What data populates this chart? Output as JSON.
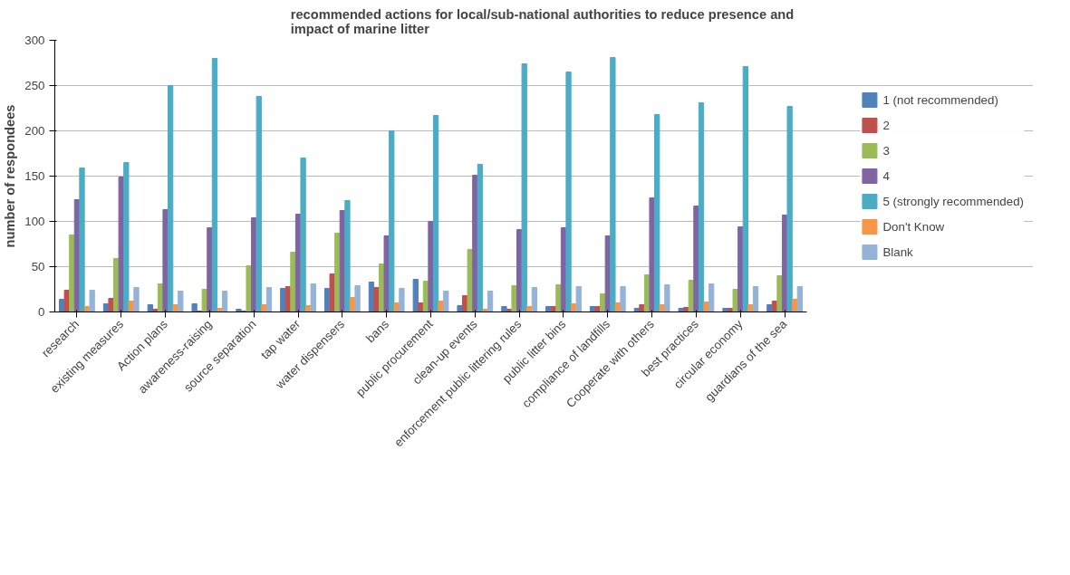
{
  "chart_data": {
    "type": "bar",
    "title": "recommended actions for local/sub-national  authorities to reduce presence and impact of marine litter",
    "ylabel": "number of respondees",
    "categories": [
      "research",
      "existing measures",
      "Action plans",
      "awareness-raising",
      "source separation",
      "tap water",
      "water dispensers",
      "bans",
      "public procurement",
      "clean-up events",
      "enforcement public littering rules",
      "public litter bins",
      "compliance of landfills",
      "Cooperate with others",
      "best practices",
      "circular economy",
      "guardians of the sea"
    ],
    "series": [
      {
        "name": "1 (not recommended)",
        "color": "#4f81bd",
        "values": [
          14,
          9,
          8,
          9,
          3,
          26,
          26,
          33,
          36,
          7,
          6,
          6,
          6,
          4,
          4,
          4,
          8
        ]
      },
      {
        "name": "2",
        "color": "#c0504d",
        "values": [
          24,
          15,
          3,
          1,
          1,
          28,
          42,
          27,
          10,
          18,
          3,
          6,
          6,
          8,
          5,
          4,
          12
        ]
      },
      {
        "name": "3",
        "color": "#9bbb59",
        "values": [
          85,
          59,
          31,
          25,
          51,
          66,
          87,
          53,
          34,
          69,
          29,
          30,
          20,
          41,
          35,
          25,
          40
        ]
      },
      {
        "name": "4",
        "color": "#8064a2",
        "values": [
          124,
          149,
          113,
          93,
          104,
          108,
          112,
          84,
          100,
          151,
          91,
          93,
          84,
          126,
          117,
          94,
          107
        ]
      },
      {
        "name": "5 (strongly recommended)",
        "color": "#4bacc6",
        "values": [
          159,
          165,
          250,
          280,
          238,
          170,
          123,
          200,
          217,
          163,
          274,
          265,
          281,
          218,
          231,
          271,
          227
        ]
      },
      {
        "name": "Don't Know",
        "color": "#f79646",
        "values": [
          6,
          12,
          8,
          4,
          8,
          7,
          16,
          10,
          12,
          3,
          6,
          9,
          10,
          8,
          11,
          8,
          14
        ]
      },
      {
        "name": "Blank",
        "color": "#95b3d7",
        "values": [
          24,
          27,
          23,
          23,
          27,
          31,
          29,
          26,
          23,
          23,
          27,
          28,
          28,
          30,
          31,
          28,
          28
        ]
      }
    ],
    "ylim": [
      0,
      300
    ],
    "yticks": [
      0,
      50,
      100,
      150,
      200,
      250,
      300
    ],
    "grid": "y",
    "legend": "right"
  }
}
